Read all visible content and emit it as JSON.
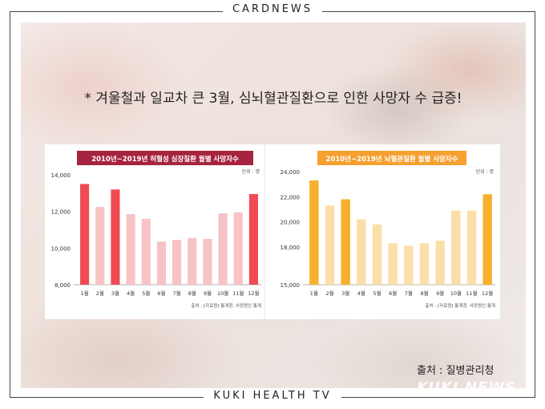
{
  "header": {
    "label": "CARDNEWS"
  },
  "footer": {
    "label": "KUKI HEALTH TV"
  },
  "headline": "* 겨울철과 일교차 큰 3월, 심뇌혈관질환으로 인한 사망자 수 급증!",
  "source": "출처 : 질병관리청",
  "watermark": "KUKI NEWS",
  "chart_data": [
    {
      "type": "bar",
      "title": "2010년~2019년 허혈성 심장질환 월별 사망자수",
      "unit_label": "단위 : 명",
      "footnote": "출처 : [자료원] 통계청, 사망원인 통계",
      "categories": [
        "1월",
        "2월",
        "3월",
        "4월",
        "5월",
        "6월",
        "7월",
        "8월",
        "9월",
        "10월",
        "11월",
        "12월"
      ],
      "values": [
        13500,
        12250,
        13200,
        11850,
        11600,
        10350,
        10450,
        10550,
        10500,
        11900,
        11950,
        12950
      ],
      "highlight": [
        0,
        2,
        11
      ],
      "ylim": [
        8000,
        14000
      ],
      "yticks": [
        8000,
        10000,
        12000,
        14000
      ],
      "ytick_labels": [
        "8,000",
        "10,000",
        "12,000",
        "14,000"
      ],
      "colors": {
        "title_bg": "#a6243f",
        "highlight": "#f04a52",
        "normal": "#f7c3c4"
      }
    },
    {
      "type": "bar",
      "title": "2010년~2019년 뇌혈관질환 월별 사망자수",
      "unit_label": "단위 : 명",
      "footnote": "출처 : [자료원] 통계청, 사망원인 통계",
      "categories": [
        "1월",
        "2월",
        "3월",
        "4월",
        "5월",
        "6월",
        "7월",
        "8월",
        "9월",
        "10월",
        "11월",
        "12월"
      ],
      "values": [
        23300,
        21300,
        21800,
        20200,
        19800,
        18300,
        18100,
        18300,
        18500,
        20900,
        20900,
        22200
      ],
      "highlight": [
        0,
        2,
        11
      ],
      "ylim": [
        15000,
        24000
      ],
      "yticks": [
        15000,
        18000,
        20000,
        22000,
        24000
      ],
      "ytick_labels": [
        "15,000",
        "18,000",
        "20,000",
        "22,000",
        "24,000"
      ],
      "colors": {
        "title_bg": "#f5a031",
        "highlight": "#f7b02d",
        "normal": "#fbdfa8"
      }
    }
  ]
}
